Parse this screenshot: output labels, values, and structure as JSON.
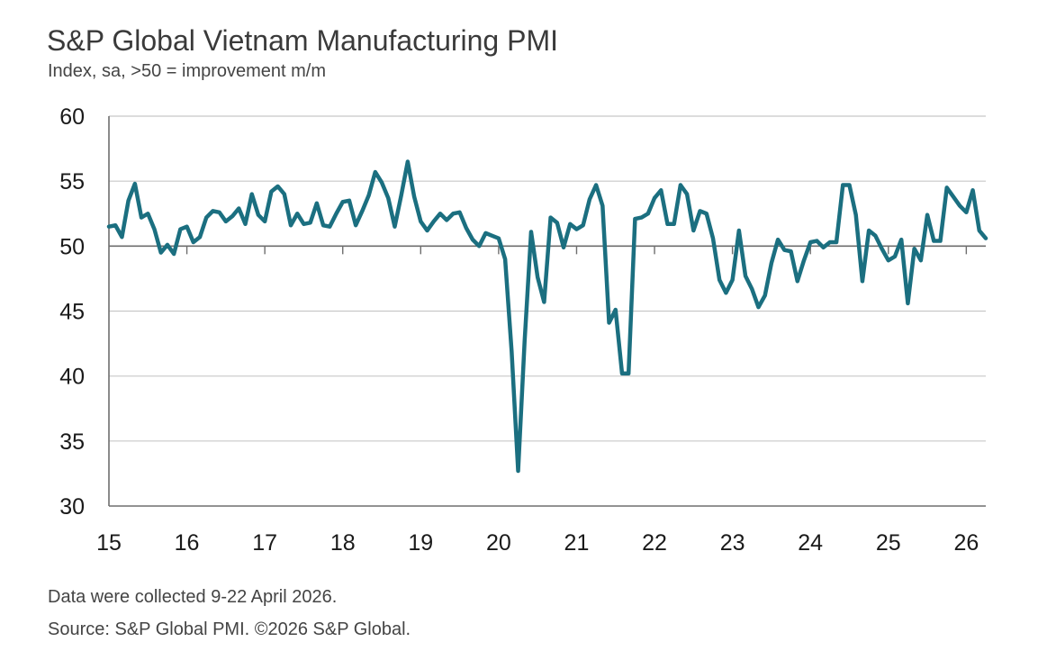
{
  "header": {
    "title": "S&P Global Vietnam Manufacturing PMI",
    "subtitle": "Index, sa, >50 = improvement m/m"
  },
  "footer": {
    "note": "Data were collected 9-22 April 2026.",
    "source": "Source: S&P Global PMI. ©2026 S&P Global."
  },
  "chart_data": {
    "type": "line",
    "title": "S&P Global Vietnam Manufacturing PMI",
    "subtitle": "Index, sa, >50 = improvement m/m",
    "xlabel": "",
    "ylabel": "",
    "ylim": [
      30,
      60
    ],
    "yticks": [
      30,
      35,
      40,
      45,
      50,
      55,
      60
    ],
    "xlim": [
      "2015-01",
      "2026-04"
    ],
    "xtick_labels": [
      "15",
      "16",
      "17",
      "18",
      "19",
      "20",
      "21",
      "22",
      "23",
      "24",
      "25",
      "26"
    ],
    "grid": "horizontal",
    "reference_line": 50,
    "line_color": "#1b6f80",
    "series": [
      {
        "x": [
          "2015-01",
          "2015-02",
          "2015-03",
          "2015-04",
          "2015-05",
          "2015-06",
          "2015-07",
          "2015-08",
          "2015-09",
          "2015-10",
          "2015-11",
          "2015-12",
          "2016-01",
          "2016-02",
          "2016-03",
          "2016-04",
          "2016-05",
          "2016-06",
          "2016-07",
          "2016-08",
          "2016-09",
          "2016-10",
          "2016-11",
          "2016-12",
          "2017-01",
          "2017-02",
          "2017-03",
          "2017-04",
          "2017-05",
          "2017-06",
          "2017-07",
          "2017-08",
          "2017-09",
          "2017-10",
          "2017-11",
          "2017-12",
          "2018-01",
          "2018-02",
          "2018-03",
          "2018-04",
          "2018-05",
          "2018-06",
          "2018-07",
          "2018-08",
          "2018-09",
          "2018-10",
          "2018-11",
          "2018-12",
          "2019-01",
          "2019-02",
          "2019-03",
          "2019-04",
          "2019-05",
          "2019-06",
          "2019-07",
          "2019-08",
          "2019-09",
          "2019-10",
          "2019-11",
          "2019-12",
          "2020-01",
          "2020-02",
          "2020-03",
          "2020-04",
          "2020-05",
          "2020-06",
          "2020-07",
          "2020-08",
          "2020-09",
          "2020-10",
          "2020-11",
          "2020-12",
          "2021-01",
          "2021-02",
          "2021-03",
          "2021-04",
          "2021-05",
          "2021-06",
          "2021-07",
          "2021-08",
          "2021-09",
          "2021-10",
          "2021-11",
          "2021-12",
          "2022-01",
          "2022-02",
          "2022-03",
          "2022-04",
          "2022-05",
          "2022-06",
          "2022-07",
          "2022-08",
          "2022-09",
          "2022-10",
          "2022-11",
          "2022-12",
          "2023-01",
          "2023-02",
          "2023-03",
          "2023-04",
          "2023-05",
          "2023-06",
          "2023-07",
          "2023-08",
          "2023-09",
          "2023-10",
          "2023-11",
          "2023-12",
          "2024-01",
          "2024-02",
          "2024-03",
          "2024-04",
          "2024-05",
          "2024-06",
          "2024-07",
          "2024-08",
          "2024-09",
          "2024-10",
          "2024-11",
          "2024-12",
          "2025-01",
          "2025-02",
          "2025-03",
          "2025-04",
          "2025-05",
          "2025-06",
          "2025-07",
          "2025-08",
          "2025-09",
          "2025-10",
          "2025-11",
          "2025-12",
          "2026-01",
          "2026-02",
          "2026-03",
          "2026-04"
        ],
        "values": [
          51.5,
          51.6,
          50.7,
          53.5,
          54.8,
          52.2,
          52.5,
          51.3,
          49.5,
          50.1,
          49.4,
          51.3,
          51.5,
          50.3,
          50.7,
          52.2,
          52.7,
          52.6,
          51.9,
          52.3,
          52.9,
          51.7,
          54.0,
          52.4,
          51.9,
          54.2,
          54.6,
          54.0,
          51.6,
          52.5,
          51.7,
          51.8,
          53.3,
          51.6,
          51.5,
          52.5,
          53.4,
          53.5,
          51.6,
          52.7,
          53.9,
          55.7,
          54.9,
          53.7,
          51.5,
          53.9,
          56.5,
          53.8,
          51.9,
          51.2,
          51.9,
          52.5,
          52.0,
          52.5,
          52.6,
          51.4,
          50.5,
          50.0,
          51.0,
          50.8,
          50.6,
          49.0,
          41.9,
          32.7,
          42.7,
          51.1,
          47.6,
          45.7,
          52.2,
          51.8,
          49.9,
          51.7,
          51.3,
          51.6,
          53.6,
          54.7,
          53.1,
          44.1,
          45.1,
          40.2,
          40.2,
          52.1,
          52.2,
          52.5,
          53.7,
          54.3,
          51.7,
          51.7,
          54.7,
          54.0,
          51.2,
          52.7,
          52.5,
          50.6,
          47.4,
          46.4,
          47.4,
          51.2,
          47.7,
          46.7,
          45.3,
          46.2,
          48.7,
          50.5,
          49.7,
          49.6,
          47.3,
          48.9,
          50.3,
          50.4,
          49.9,
          50.3,
          50.3,
          54.7,
          54.7,
          52.4,
          47.3,
          51.2,
          50.8,
          49.8,
          48.9,
          49.2,
          50.5,
          45.6,
          49.8,
          48.9,
          52.4,
          50.4,
          50.4,
          54.5,
          53.8,
          53.1,
          52.6,
          54.3,
          51.2,
          50.6
        ]
      }
    ]
  }
}
